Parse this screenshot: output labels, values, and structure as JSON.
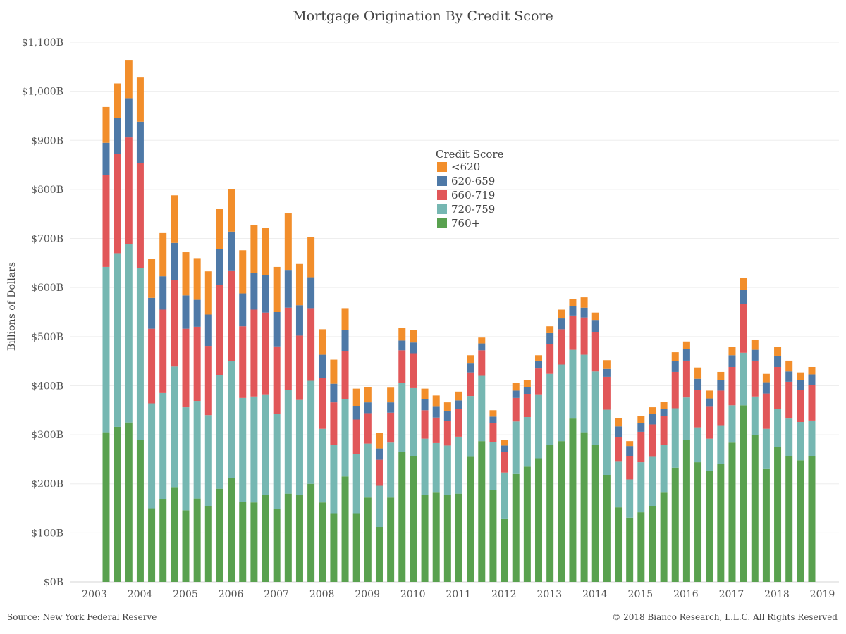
{
  "chart_data": {
    "type": "bar",
    "stacked": true,
    "title": "Mortgage Origination By Credit Score",
    "ylabel": "Billions of Dollars",
    "xlabel": "",
    "ylim": [
      0,
      1100
    ],
    "y_ticks": [
      "$0B",
      "$100B",
      "$200B",
      "$300B",
      "$400B",
      "$500B",
      "$600B",
      "$700B",
      "$800B",
      "$900B",
      "$1,000B",
      "$1,100B"
    ],
    "x_ticks": [
      "2003",
      "2004",
      "2005",
      "2006",
      "2007",
      "2008",
      "2009",
      "2010",
      "2011",
      "2012",
      "2013",
      "2014",
      "2015",
      "2016",
      "2017",
      "2018",
      "2019"
    ],
    "grid": true,
    "legend": {
      "title": "Credit Score",
      "position": "center"
    },
    "series": [
      {
        "name": "760+",
        "color": "#59a14f",
        "values": [
          305,
          316,
          325,
          290,
          150,
          168,
          192,
          146,
          170,
          155,
          190,
          212,
          163,
          162,
          177,
          148,
          180,
          178,
          200,
          162,
          140,
          215,
          140,
          172,
          112,
          172,
          265,
          257,
          178,
          182,
          177,
          180,
          255,
          287,
          187,
          128,
          220,
          235,
          252,
          280,
          287,
          333,
          305,
          280,
          217,
          152,
          131,
          142,
          155,
          182,
          233,
          289,
          244,
          226,
          240,
          284,
          360,
          300,
          230,
          275,
          257,
          248,
          256
        ]
      },
      {
        "name": "720-759",
        "color": "#76b7b2",
        "values": [
          337,
          354,
          364,
          350,
          214,
          217,
          247,
          210,
          199,
          185,
          231,
          238,
          212,
          216,
          204,
          194,
          211,
          193,
          210,
          150,
          140,
          158,
          120,
          110,
          84,
          112,
          140,
          138,
          114,
          101,
          101,
          116,
          124,
          133,
          98,
          95,
          107,
          101,
          129,
          144,
          156,
          140,
          158,
          149,
          134,
          93,
          78,
          102,
          100,
          98,
          121,
          87,
          71,
          66,
          78,
          76,
          107,
          78,
          82,
          78,
          76,
          78,
          73
        ]
      },
      {
        "name": "660-719",
        "color": "#e15759",
        "values": [
          188,
          203,
          217,
          213,
          152,
          170,
          177,
          160,
          151,
          141,
          185,
          185,
          146,
          177,
          168,
          138,
          168,
          131,
          148,
          104,
          86,
          98,
          71,
          62,
          53,
          61,
          67,
          71,
          58,
          52,
          50,
          56,
          48,
          52,
          39,
          42,
          48,
          46,
          54,
          60,
          72,
          70,
          76,
          80,
          67,
          50,
          48,
          62,
          66,
          58,
          74,
          75,
          77,
          65,
          72,
          78,
          100,
          73,
          72,
          85,
          75,
          66,
          73
        ]
      },
      {
        "name": "620-659",
        "color": "#4e79a7",
        "values": [
          65,
          72,
          80,
          85,
          63,
          68,
          75,
          68,
          55,
          64,
          72,
          79,
          67,
          75,
          77,
          70,
          77,
          62,
          63,
          47,
          38,
          43,
          27,
          22,
          23,
          21,
          20,
          22,
          23,
          22,
          21,
          18,
          18,
          14,
          13,
          13,
          15,
          15,
          16,
          23,
          22,
          19,
          20,
          25,
          16,
          22,
          20,
          18,
          22,
          15,
          22,
          24,
          22,
          17,
          21,
          24,
          28,
          22,
          23,
          23,
          21,
          20,
          21
        ]
      },
      {
        "name": "<620",
        "color": "#f28e2b",
        "values": [
          73,
          71,
          78,
          90,
          80,
          88,
          97,
          88,
          85,
          88,
          82,
          86,
          88,
          98,
          95,
          92,
          115,
          84,
          82,
          52,
          49,
          44,
          36,
          31,
          31,
          30,
          26,
          25,
          21,
          23,
          17,
          18,
          17,
          12,
          13,
          12,
          15,
          15,
          11,
          14,
          18,
          15,
          21,
          15,
          18,
          17,
          10,
          14,
          13,
          14,
          18,
          15,
          23,
          16,
          17,
          17,
          24,
          21,
          17,
          18,
          22,
          15,
          15
        ]
      }
    ]
  },
  "footer": {
    "source": "Source: New York Federal Reserve",
    "copyright": "© 2018 Bianco Research, L.L.C. All Rights Reserved"
  }
}
